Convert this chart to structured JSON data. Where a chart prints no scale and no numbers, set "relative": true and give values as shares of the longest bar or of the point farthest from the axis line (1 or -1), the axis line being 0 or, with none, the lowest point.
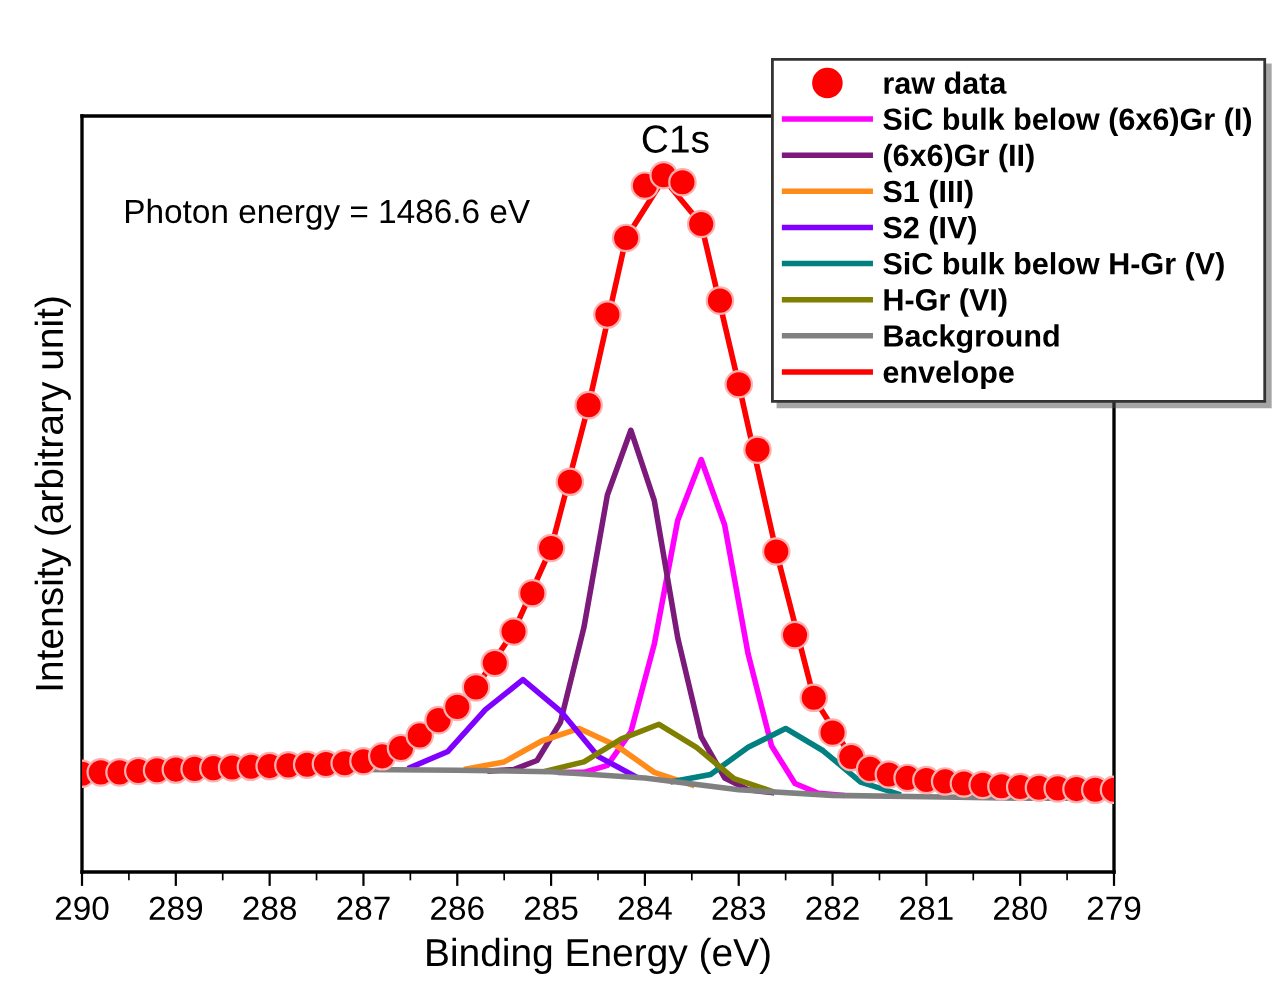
{
  "chart_data": {
    "type": "line",
    "title": "C1s",
    "xlabel": "Binding Energy (eV)",
    "ylabel": "Intensity (arbitrary unit)",
    "annotations": [
      "Photon energy = 1486.6 eV"
    ],
    "relative": true,
    "xlim": [
      290,
      279
    ],
    "xticks": [
      290,
      289,
      288,
      287,
      286,
      285,
      284,
      283,
      282,
      281,
      280,
      279
    ],
    "tick_labels": "x",
    "grid": false,
    "legend": "top right",
    "series": [
      {
        "name": "raw data",
        "type": "scatter",
        "marker": "circle",
        "color": "#ff0000",
        "x": [
          290,
          289.8,
          289.6,
          289.4,
          289.2,
          289,
          288.8,
          288.6,
          288.4,
          288.2,
          288,
          287.8,
          287.6,
          287.4,
          287.2,
          287,
          286.8,
          286.6,
          286.4,
          286.2,
          286,
          285.8,
          285.6,
          285.4,
          285.2,
          285,
          284.8,
          284.6,
          284.4,
          284.2,
          284,
          283.8,
          283.6,
          283.4,
          283.2,
          283,
          282.8,
          282.6,
          282.4,
          282.2,
          282,
          281.8,
          281.6,
          281.4,
          281.2,
          281,
          280.8,
          280.6,
          280.4,
          280.2,
          280,
          279.8,
          279.6,
          279.4,
          279.2,
          279
        ],
        "values": [
          0.141,
          0.143,
          0.143,
          0.145,
          0.146,
          0.147,
          0.148,
          0.149,
          0.15,
          0.151,
          0.152,
          0.153,
          0.154,
          0.155,
          0.156,
          0.159,
          0.166,
          0.178,
          0.196,
          0.218,
          0.237,
          0.265,
          0.3,
          0.345,
          0.4,
          0.465,
          0.56,
          0.67,
          0.8,
          0.91,
          0.985,
          1.0,
          0.99,
          0.93,
          0.82,
          0.7,
          0.606,
          0.46,
          0.34,
          0.25,
          0.2,
          0.165,
          0.148,
          0.14,
          0.135,
          0.132,
          0.13,
          0.127,
          0.125,
          0.123,
          0.122,
          0.121,
          0.12,
          0.119,
          0.118,
          0.118
        ]
      },
      {
        "name": "SiC bulk below (6x6)Gr (I)",
        "color": "#ff00ff",
        "x": [
          281.9,
          282.15,
          282.4,
          282.65,
          282.9,
          283.15,
          283.4,
          283.65,
          283.9,
          284.15,
          284.4,
          284.65,
          284.9
        ],
        "values": [
          0.11,
          0.113,
          0.127,
          0.181,
          0.313,
          0.498,
          0.592,
          0.505,
          0.327,
          0.201,
          0.153,
          0.143,
          0.143
        ]
      },
      {
        "name": "(6x6)Gr (II)",
        "color": "#7b1a7b",
        "x": [
          282.65,
          282.9,
          283.15,
          283.4,
          283.65,
          283.9,
          284.15,
          284.4,
          284.65,
          284.9,
          285.15,
          285.4,
          285.65
        ],
        "values": [
          0.114,
          0.118,
          0.135,
          0.194,
          0.336,
          0.533,
          0.634,
          0.541,
          0.351,
          0.215,
          0.16,
          0.147,
          0.145
        ]
      },
      {
        "name": "S1 (III)",
        "color": "#ff8c1a",
        "x": [
          283.5,
          283.9,
          284.3,
          284.7,
          285.1,
          285.5,
          285.9
        ],
        "values": [
          0.125,
          0.143,
          0.181,
          0.206,
          0.188,
          0.158,
          0.148
        ]
      },
      {
        "name": "S2 (IV)",
        "color": "#8000ff",
        "x": [
          284.1,
          284.5,
          284.9,
          285.3,
          285.7,
          286.1,
          286.5
        ],
        "values": [
          0.137,
          0.166,
          0.231,
          0.276,
          0.233,
          0.173,
          0.15
        ]
      },
      {
        "name": "SiC bulk below H-Gr (V)",
        "color": "#008080",
        "x": [
          281.3,
          281.7,
          282.1,
          282.5,
          282.9,
          283.3,
          283.7
        ],
        "values": [
          0.112,
          0.129,
          0.174,
          0.206,
          0.179,
          0.14,
          0.13
        ]
      },
      {
        "name": "H-Gr (VI)",
        "color": "#808000",
        "x": [
          282.65,
          283.05,
          283.45,
          283.85,
          284.25,
          284.65,
          285.05
        ],
        "values": [
          0.116,
          0.134,
          0.179,
          0.212,
          0.191,
          0.158,
          0.145
        ]
      },
      {
        "name": "Background",
        "color": "#808080",
        "x": [
          287,
          286,
          285,
          284,
          283,
          282,
          281,
          280,
          279.5
        ],
        "values": [
          0.147,
          0.146,
          0.144,
          0.135,
          0.118,
          0.11,
          0.108,
          0.106,
          0.106
        ]
      },
      {
        "name": "envelope",
        "color": "#ff0000",
        "x": [
          289,
          288,
          287,
          286.6,
          286.2,
          285.8,
          285.4,
          285,
          284.6,
          284.2,
          283.8,
          283.4,
          283,
          282.6,
          282.2,
          281.8,
          281.4,
          281,
          280,
          279
        ],
        "values": [
          0.147,
          0.152,
          0.158,
          0.176,
          0.215,
          0.265,
          0.345,
          0.465,
          0.67,
          0.91,
          0.995,
          0.93,
          0.7,
          0.46,
          0.25,
          0.165,
          0.14,
          0.132,
          0.122,
          0.118
        ]
      }
    ]
  }
}
